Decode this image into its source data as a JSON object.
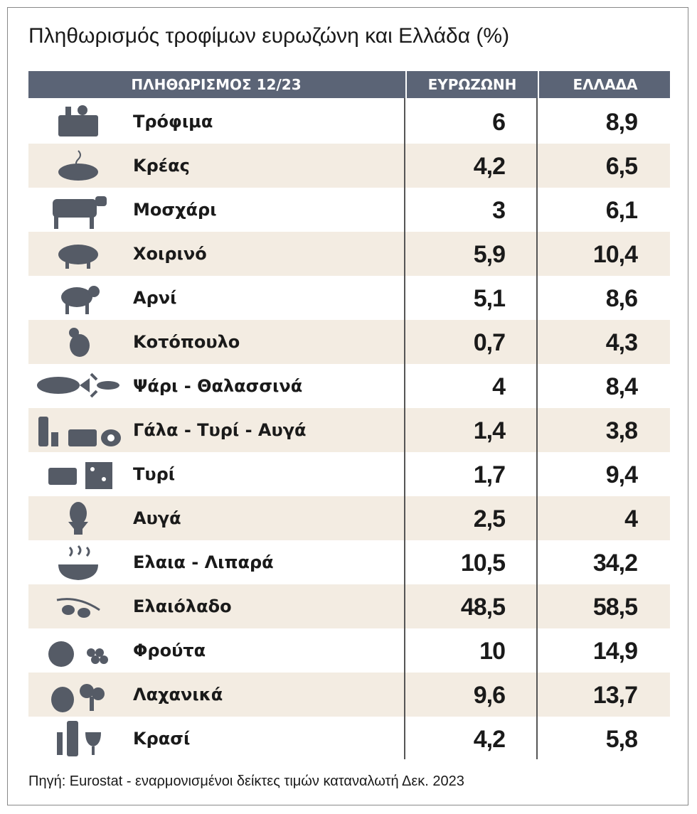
{
  "title": "Πληθωρισμός τροφίμων ευρωζώνη και Ελλάδα (%)",
  "table": {
    "header": [
      "ΠΛΗΘΩΡΙΣΜΟΣ 12/23",
      "ΕΥΡΩΖΩΝΗ",
      "ΕΛΛΑΔΑ"
    ],
    "rows": [
      [
        "Τρόφιμα",
        "6",
        "8,9"
      ],
      [
        "Κρέας",
        "4,2",
        "6,5"
      ],
      [
        "Μοσχάρι",
        "3",
        "6,1"
      ],
      [
        "Χοιρινό",
        "5,9",
        "10,4"
      ],
      [
        "Αρνί",
        "5,1",
        "8,6"
      ],
      [
        "Κοτόπουλο",
        "0,7",
        "4,3"
      ],
      [
        "Ψάρι - Θαλασσινά",
        "4",
        "8,4"
      ],
      [
        "Γάλα - Τυρί - Αυγά",
        "1,4",
        "3,8"
      ],
      [
        "Τυρί",
        "1,7",
        "9,4"
      ],
      [
        "Αυγά",
        "2,5",
        "4"
      ],
      [
        "Ελαια - Λιπαρά",
        "10,5",
        "34,2"
      ],
      [
        "Ελαιόλαδο",
        "48,5",
        "58,5"
      ],
      [
        "Φρούτα",
        "10",
        "14,9"
      ],
      [
        "Λαχανικά",
        "9,6",
        "13,7"
      ],
      [
        "Κρασί",
        "4,2",
        "5,8"
      ]
    ]
  },
  "source": "Πηγή: Eurostat - εναρμονισμένοι δείκτες τιμών καταναλωτή Δεκ. 2023"
}
